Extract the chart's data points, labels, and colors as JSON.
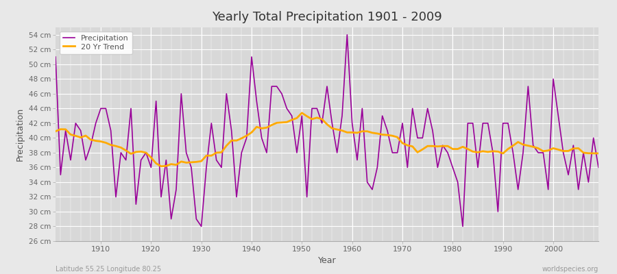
{
  "title": "Yearly Total Precipitation 1901 - 2009",
  "xlabel": "Year",
  "ylabel": "Precipitation",
  "subtitle_left": "Latitude 55.25 Longitude 80.25",
  "subtitle_right": "worldspecies.org",
  "ylim": [
    26,
    55
  ],
  "yticks": [
    26,
    28,
    30,
    32,
    34,
    36,
    38,
    40,
    42,
    44,
    46,
    48,
    50,
    52,
    54
  ],
  "xlim": [
    1901,
    2009
  ],
  "line_color": "#990099",
  "trend_color": "#ffaa00",
  "bg_color": "#e8e8e8",
  "plot_bg_color": "#d8d8d8",
  "years": [
    1901,
    1902,
    1903,
    1904,
    1905,
    1906,
    1907,
    1908,
    1909,
    1910,
    1911,
    1912,
    1913,
    1914,
    1915,
    1916,
    1917,
    1918,
    1919,
    1920,
    1921,
    1922,
    1923,
    1924,
    1925,
    1926,
    1927,
    1928,
    1929,
    1930,
    1931,
    1932,
    1933,
    1934,
    1935,
    1936,
    1937,
    1938,
    1939,
    1940,
    1941,
    1942,
    1943,
    1944,
    1945,
    1946,
    1947,
    1948,
    1949,
    1950,
    1951,
    1952,
    1953,
    1954,
    1955,
    1956,
    1957,
    1958,
    1959,
    1960,
    1961,
    1962,
    1963,
    1964,
    1965,
    1966,
    1967,
    1968,
    1969,
    1970,
    1971,
    1972,
    1973,
    1974,
    1975,
    1976,
    1977,
    1978,
    1979,
    1980,
    1981,
    1982,
    1983,
    1984,
    1985,
    1986,
    1987,
    1988,
    1989,
    1990,
    1991,
    1992,
    1993,
    1994,
    1995,
    1996,
    1997,
    1998,
    1999,
    2000,
    2001,
    2002,
    2003,
    2004,
    2005,
    2006,
    2007,
    2008,
    2009
  ],
  "precip": [
    51,
    35,
    41,
    37,
    42,
    41,
    37,
    39,
    42,
    44,
    44,
    41,
    32,
    38,
    37,
    44,
    31,
    37,
    38,
    36,
    45,
    32,
    37,
    29,
    33,
    46,
    38,
    36,
    29,
    28,
    36,
    42,
    37,
    36,
    46,
    41,
    32,
    38,
    40,
    51,
    45,
    40,
    38,
    47,
    47,
    46,
    44,
    43,
    38,
    43,
    32,
    44,
    44,
    42,
    47,
    42,
    38,
    43,
    54,
    42,
    37,
    44,
    34,
    33,
    36,
    43,
    41,
    38,
    38,
    42,
    36,
    44,
    40,
    40,
    44,
    41,
    36,
    39,
    38,
    36,
    34,
    28,
    42,
    42,
    36,
    42,
    42,
    38,
    30,
    42,
    42,
    38,
    33,
    38,
    47,
    39,
    38,
    38,
    33,
    48,
    43,
    38,
    35,
    39,
    33,
    38,
    34,
    40,
    36
  ]
}
